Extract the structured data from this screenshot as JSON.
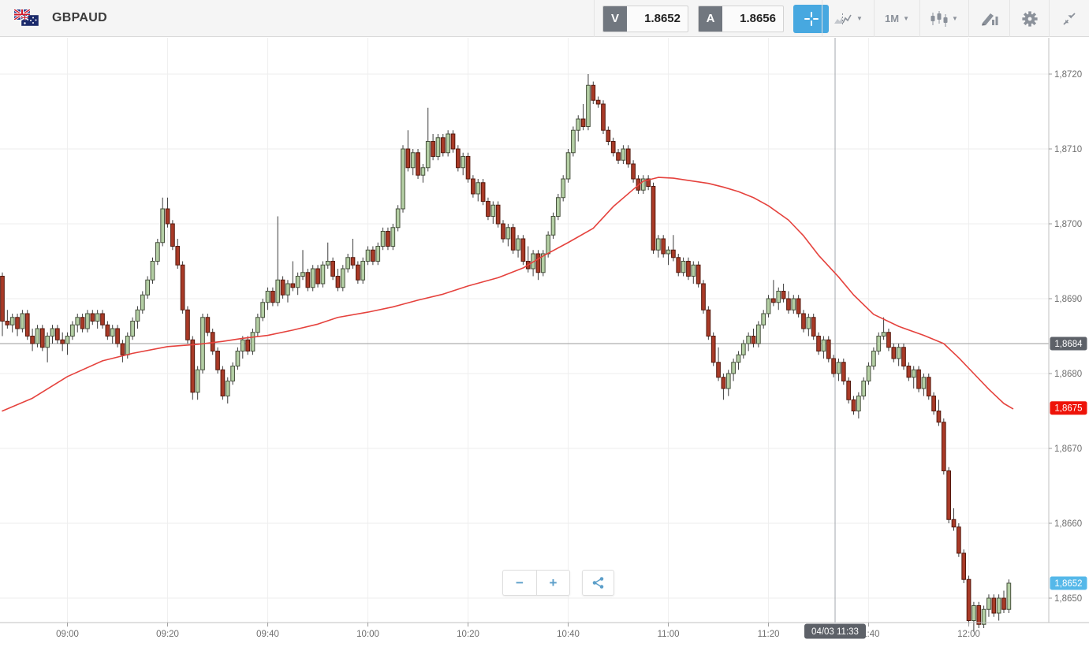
{
  "header": {
    "symbol": "GBPAUD",
    "sell": {
      "tag": "V",
      "price": "1.8652"
    },
    "buy": {
      "tag": "A",
      "price": "1.8656"
    },
    "timeframe": "1M",
    "caret": "▼"
  },
  "axis": {
    "price_ticks": [
      {
        "label": "1,8720",
        "pips": 120
      },
      {
        "label": "1,8710",
        "pips": 110
      },
      {
        "label": "1,8700",
        "pips": 100
      },
      {
        "label": "1,8690",
        "pips": 90
      },
      {
        "label": "1,8680",
        "pips": 80
      },
      {
        "label": "1,8670",
        "pips": 70
      },
      {
        "label": "1,8660",
        "pips": 60
      },
      {
        "label": "1,8650",
        "pips": 50
      }
    ],
    "time_ticks": [
      {
        "label": "09:00",
        "index": 13
      },
      {
        "label": "09:20",
        "index": 33
      },
      {
        "label": "09:40",
        "index": 53
      },
      {
        "label": "10:00",
        "index": 73
      },
      {
        "label": "10:20",
        "index": 93
      },
      {
        "label": "10:40",
        "index": 113
      },
      {
        "label": "11:00",
        "index": 133
      },
      {
        "label": "11:20",
        "index": 153
      },
      {
        "label": "11:40",
        "index": 173
      },
      {
        "label": "12:00",
        "index": 193
      }
    ]
  },
  "overlays": {
    "ref_line": {
      "label": "1,8684",
      "pips": 84,
      "color": "#5d6168"
    },
    "ma_badge": {
      "label": "1,8675",
      "pips": 75.4,
      "color": "#ee1309"
    },
    "last_badge": {
      "label": "1,8652",
      "pips": 52,
      "color": "#55b8e9"
    },
    "time_marker": {
      "label": "04/03 11:33",
      "index": 166.3
    }
  },
  "zoom_controls": {
    "zoom_out": "−",
    "zoom_in": "+"
  },
  "chart_data": {
    "type": "candlestick",
    "symbol": "GBPAUD",
    "interval": "1M",
    "start_time": "08:47",
    "bid": 1.8652,
    "ask": 1.8656,
    "price_encoding": {
      "base": 1.86,
      "unit": 0.0001,
      "note": "OHLC values are pips above 1.8600"
    },
    "ylim": [
      1.8647,
      1.8725
    ],
    "grid": true,
    "ma_color": "#e5423d",
    "colors": {
      "bull_fill": "#b4cfa4",
      "bull_stroke": "#46503c",
      "bear_fill": "#a93a27",
      "bear_stroke": "#54190e",
      "wick": "#3d3d3d"
    },
    "candles_ohlc_pips": [
      [
        93,
        93.5,
        85,
        87
      ],
      [
        87,
        88.5,
        86,
        86.5
      ],
      [
        86.5,
        88,
        85.5,
        87.5
      ],
      [
        87.5,
        88,
        85,
        86
      ],
      [
        86,
        88.5,
        85.5,
        88
      ],
      [
        88,
        88.5,
        84.5,
        85
      ],
      [
        85,
        86,
        83,
        84
      ],
      [
        84,
        86.5,
        83.5,
        86
      ],
      [
        86,
        86.5,
        83,
        83.5
      ],
      [
        83.5,
        85.5,
        81.5,
        85
      ],
      [
        85,
        86.5,
        84,
        86
      ],
      [
        86,
        86.5,
        84,
        84.5
      ],
      [
        84.5,
        85.5,
        83,
        84
      ],
      [
        84,
        85.5,
        82.5,
        85
      ],
      [
        85,
        87,
        84.5,
        86.5
      ],
      [
        86.5,
        88,
        85.5,
        87.5
      ],
      [
        87.5,
        88,
        85.5,
        86
      ],
      [
        86,
        88.5,
        85.5,
        88
      ],
      [
        88,
        88.5,
        86.5,
        87
      ],
      [
        87,
        88.5,
        86,
        88
      ],
      [
        88,
        88.5,
        86,
        86.5
      ],
      [
        86.5,
        87,
        84.5,
        85
      ],
      [
        85,
        86.5,
        84,
        86
      ],
      [
        86,
        86.5,
        83.5,
        84
      ],
      [
        84,
        84.5,
        81.5,
        82.5
      ],
      [
        82.5,
        85.5,
        82,
        85
      ],
      [
        85,
        87.5,
        84.5,
        87
      ],
      [
        87,
        89,
        86,
        88.5
      ],
      [
        88.5,
        91,
        88,
        90.5
      ],
      [
        90.5,
        93,
        90,
        92.5
      ],
      [
        92.5,
        95.5,
        92,
        95
      ],
      [
        95,
        98,
        94.5,
        97.5
      ],
      [
        97.5,
        103.5,
        97,
        102
      ],
      [
        102,
        103.5,
        99.5,
        100
      ],
      [
        100,
        100.5,
        96.5,
        97
      ],
      [
        97,
        98,
        94,
        94.5
      ],
      [
        94.5,
        95,
        88,
        88.5
      ],
      [
        88.5,
        89,
        84,
        84.5
      ],
      [
        84.5,
        85,
        76.5,
        77.5
      ],
      [
        77.5,
        81,
        76.5,
        80.5
      ],
      [
        80.5,
        88,
        80,
        87.5
      ],
      [
        87.5,
        88,
        85,
        85.5
      ],
      [
        85.5,
        86,
        82.5,
        83
      ],
      [
        83,
        83.5,
        80,
        80.5
      ],
      [
        80.5,
        81,
        76.5,
        77
      ],
      [
        77,
        79.5,
        76,
        79
      ],
      [
        79,
        81.5,
        78.5,
        81
      ],
      [
        81,
        83.5,
        80.5,
        83
      ],
      [
        83,
        85,
        82,
        84.5
      ],
      [
        84.5,
        85,
        82.5,
        83
      ],
      [
        83,
        86,
        82.5,
        85.5
      ],
      [
        85.5,
        88,
        85,
        87.5
      ],
      [
        87.5,
        90,
        87,
        89.5
      ],
      [
        89.5,
        91.5,
        88.5,
        91
      ],
      [
        91,
        91.5,
        89,
        89.5
      ],
      [
        89.5,
        101,
        89,
        92.5
      ],
      [
        92.5,
        93,
        90,
        90.5
      ],
      [
        90.5,
        92.5,
        89.5,
        92
      ],
      [
        92,
        95,
        91,
        91.5
      ],
      [
        91.5,
        93.5,
        90.5,
        93
      ],
      [
        93,
        96.5,
        92.5,
        93.5
      ],
      [
        93.5,
        94,
        91,
        91.5
      ],
      [
        91.5,
        94.5,
        91,
        94
      ],
      [
        94,
        94.5,
        91.5,
        92
      ],
      [
        92,
        95,
        91.5,
        94.5
      ],
      [
        94.5,
        97.5,
        94,
        95
      ],
      [
        95,
        95.5,
        92.5,
        93
      ],
      [
        93,
        94,
        91,
        91.5
      ],
      [
        91.5,
        94.5,
        91,
        94
      ],
      [
        94,
        96,
        93.5,
        95.5
      ],
      [
        95.5,
        98,
        94,
        94.5
      ],
      [
        94.5,
        95,
        92,
        92.5
      ],
      [
        92.5,
        95.5,
        92,
        95
      ],
      [
        95,
        97,
        94.5,
        96.5
      ],
      [
        96.5,
        97,
        94.5,
        95
      ],
      [
        95,
        97.5,
        94.5,
        97
      ],
      [
        97,
        99.5,
        96.5,
        99
      ],
      [
        99,
        99.5,
        96.5,
        97
      ],
      [
        97,
        100,
        96.5,
        99.5
      ],
      [
        99.5,
        102.5,
        99,
        102
      ],
      [
        102,
        110.5,
        101.5,
        110
      ],
      [
        110,
        112.5,
        107,
        107.5
      ],
      [
        107.5,
        110,
        106.5,
        109.5
      ],
      [
        109.5,
        110,
        106,
        106.5
      ],
      [
        106.5,
        108,
        105.5,
        107.5
      ],
      [
        107.5,
        115.5,
        107,
        111
      ],
      [
        111,
        112,
        108.5,
        109
      ],
      [
        109,
        112,
        108.5,
        111.5
      ],
      [
        111.5,
        112,
        109,
        109.5
      ],
      [
        109.5,
        112.5,
        109,
        112
      ],
      [
        112,
        112.5,
        109.5,
        110
      ],
      [
        110,
        110.5,
        107,
        107.5
      ],
      [
        107.5,
        109.5,
        106.5,
        109
      ],
      [
        109,
        109.5,
        105.5,
        106
      ],
      [
        106,
        106.5,
        103.5,
        104
      ],
      [
        104,
        106,
        103,
        105.5
      ],
      [
        105.5,
        106,
        102.5,
        103
      ],
      [
        103,
        103.5,
        100.5,
        101
      ],
      [
        101,
        103,
        100,
        102.5
      ],
      [
        102.5,
        103,
        99.5,
        100
      ],
      [
        100,
        100.5,
        97.5,
        98
      ],
      [
        98,
        100,
        97,
        99.5
      ],
      [
        99.5,
        100,
        96,
        96.5
      ],
      [
        96.5,
        98.5,
        95.5,
        98
      ],
      [
        98,
        98.5,
        94.5,
        95
      ],
      [
        95,
        97,
        93.5,
        94
      ],
      [
        94,
        96.5,
        93,
        96
      ],
      [
        96,
        96.5,
        92.5,
        93.5
      ],
      [
        93.5,
        96.5,
        93,
        96
      ],
      [
        96,
        99,
        95.5,
        98.5
      ],
      [
        98.5,
        101.5,
        98,
        101
      ],
      [
        101,
        104,
        100.5,
        103.5
      ],
      [
        103.5,
        106.5,
        103,
        106
      ],
      [
        106,
        110,
        105.5,
        109.5
      ],
      [
        109.5,
        113,
        109,
        112.5
      ],
      [
        112.5,
        114.5,
        111,
        114
      ],
      [
        114,
        116,
        112.5,
        113
      ],
      [
        113,
        120,
        112.5,
        118.5
      ],
      [
        118.5,
        119,
        116,
        116.5
      ],
      [
        116.5,
        117,
        115.5,
        116
      ],
      [
        116,
        116.5,
        112,
        112.5
      ],
      [
        112.5,
        113,
        110.5,
        111
      ],
      [
        111,
        111.5,
        109,
        109.5
      ],
      [
        109.5,
        110,
        108,
        108.5
      ],
      [
        108.5,
        110.5,
        108,
        110
      ],
      [
        110,
        110.5,
        107.5,
        108
      ],
      [
        108,
        108.5,
        105.5,
        106
      ],
      [
        106,
        106.5,
        104,
        104.5
      ],
      [
        104.5,
        106.5,
        104,
        106
      ],
      [
        106,
        106.5,
        104.5,
        105
      ],
      [
        105,
        105.5,
        96,
        96.5
      ],
      [
        96.5,
        98.5,
        95.5,
        98
      ],
      [
        98,
        98.5,
        95.5,
        96
      ],
      [
        96,
        97,
        94.5,
        96.5
      ],
      [
        96.5,
        98.5,
        95,
        95.5
      ],
      [
        95.5,
        96,
        93,
        93.5
      ],
      [
        93.5,
        95.5,
        93,
        95
      ],
      [
        95,
        95.5,
        92.5,
        93
      ],
      [
        93,
        95,
        92,
        94.5
      ],
      [
        94.5,
        95,
        91.5,
        92
      ],
      [
        92,
        92.5,
        88,
        88.5
      ],
      [
        88.5,
        89,
        84.5,
        85
      ],
      [
        85,
        85.5,
        81,
        81.5
      ],
      [
        81.5,
        83.5,
        79,
        79.5
      ],
      [
        79.5,
        80,
        76.5,
        78
      ],
      [
        78,
        80.5,
        77,
        80
      ],
      [
        80,
        82,
        79,
        81.5
      ],
      [
        81.5,
        83,
        80.5,
        82.5
      ],
      [
        82.5,
        84.5,
        82,
        84
      ],
      [
        84,
        85.5,
        83,
        85
      ],
      [
        85,
        86,
        83.5,
        84
      ],
      [
        84,
        87,
        83.5,
        86.5
      ],
      [
        86.5,
        88.5,
        86,
        88
      ],
      [
        88,
        90.5,
        87.5,
        90
      ],
      [
        90,
        92.5,
        89,
        89.5
      ],
      [
        89.5,
        91.5,
        88.5,
        91
      ],
      [
        91,
        92,
        89.5,
        90
      ],
      [
        90,
        91,
        88,
        88.5
      ],
      [
        88.5,
        90.5,
        88,
        90
      ],
      [
        90,
        90.5,
        87.5,
        88
      ],
      [
        88,
        88.5,
        85.5,
        86
      ],
      [
        86,
        88,
        85,
        87.5
      ],
      [
        87.5,
        88,
        84.5,
        85
      ],
      [
        85,
        85.5,
        82.5,
        83
      ],
      [
        83,
        85,
        82,
        84.5
      ],
      [
        84.5,
        85,
        81.5,
        82
      ],
      [
        82,
        82.5,
        79.5,
        80
      ],
      [
        80,
        82,
        79,
        81.5
      ],
      [
        81.5,
        82,
        78.5,
        79
      ],
      [
        79,
        79.5,
        76,
        76.5
      ],
      [
        76.5,
        77,
        74.5,
        75
      ],
      [
        75,
        77.5,
        74,
        77
      ],
      [
        77,
        79.5,
        76.5,
        79
      ],
      [
        79,
        81.5,
        78.5,
        81
      ],
      [
        81,
        83.5,
        80.5,
        83
      ],
      [
        83,
        85.5,
        82.5,
        85
      ],
      [
        85,
        87.5,
        84.5,
        85.5
      ],
      [
        85.5,
        86,
        83,
        83.5
      ],
      [
        83.5,
        84,
        81.5,
        82
      ],
      [
        82,
        84,
        81,
        83.5
      ],
      [
        83.5,
        84,
        80.5,
        81
      ],
      [
        81,
        81.5,
        79,
        79.5
      ],
      [
        79.5,
        81,
        78,
        80.5
      ],
      [
        80.5,
        81,
        77.5,
        78
      ],
      [
        78,
        80,
        77,
        79.5
      ],
      [
        79.5,
        80,
        76.5,
        77
      ],
      [
        77,
        77.5,
        74.5,
        75
      ],
      [
        75,
        76.5,
        73,
        73.5
      ],
      [
        73.5,
        74,
        66.5,
        67
      ],
      [
        67,
        67.5,
        60,
        60.5
      ],
      [
        60.5,
        62,
        59,
        59.5
      ],
      [
        59.5,
        60,
        55.5,
        56
      ],
      [
        56,
        56.5,
        52,
        52.5
      ],
      [
        52.5,
        53,
        46.5,
        47
      ],
      [
        47,
        49.5,
        45.5,
        49
      ],
      [
        49,
        49.5,
        46,
        46.5
      ],
      [
        46.5,
        49,
        46,
        48.5
      ],
      [
        48.5,
        50.5,
        47.5,
        50
      ],
      [
        50,
        50.5,
        47.5,
        48
      ],
      [
        48,
        50.5,
        47,
        50
      ],
      [
        50,
        51,
        48,
        48.5
      ],
      [
        48.5,
        52.5,
        48,
        52
      ]
    ],
    "ma_points_pips": [
      [
        0,
        75.0
      ],
      [
        6,
        76.7
      ],
      [
        13,
        79.6
      ],
      [
        20,
        81.7
      ],
      [
        26,
        82.7
      ],
      [
        33,
        83.6
      ],
      [
        39,
        83.9
      ],
      [
        44,
        84.3
      ],
      [
        48,
        84.7
      ],
      [
        53,
        85.1
      ],
      [
        58,
        85.8
      ],
      [
        63,
        86.6
      ],
      [
        67,
        87.5
      ],
      [
        73,
        88.2
      ],
      [
        78,
        88.9
      ],
      [
        83,
        89.8
      ],
      [
        88,
        90.6
      ],
      [
        93,
        91.7
      ],
      [
        99,
        92.8
      ],
      [
        104,
        94.1
      ],
      [
        108,
        95.7
      ],
      [
        113,
        97.5
      ],
      [
        118,
        99.4
      ],
      [
        122,
        102.3
      ],
      [
        126,
        104.6
      ],
      [
        128,
        105.7
      ],
      [
        131,
        106.2
      ],
      [
        134,
        106.1
      ],
      [
        137,
        105.8
      ],
      [
        141,
        105.4
      ],
      [
        144,
        104.9
      ],
      [
        147,
        104.3
      ],
      [
        150,
        103.5
      ],
      [
        153,
        102.4
      ],
      [
        157,
        100.5
      ],
      [
        160,
        98.4
      ],
      [
        163,
        95.8
      ],
      [
        167,
        92.9
      ],
      [
        170,
        90.5
      ],
      [
        174,
        87.9
      ],
      [
        179,
        86.3
      ],
      [
        184,
        85.1
      ],
      [
        188,
        84.0
      ],
      [
        191,
        82.1
      ],
      [
        194,
        80.0
      ],
      [
        197,
        77.9
      ],
      [
        200,
        76.0
      ],
      [
        201.8,
        75.3
      ]
    ]
  }
}
